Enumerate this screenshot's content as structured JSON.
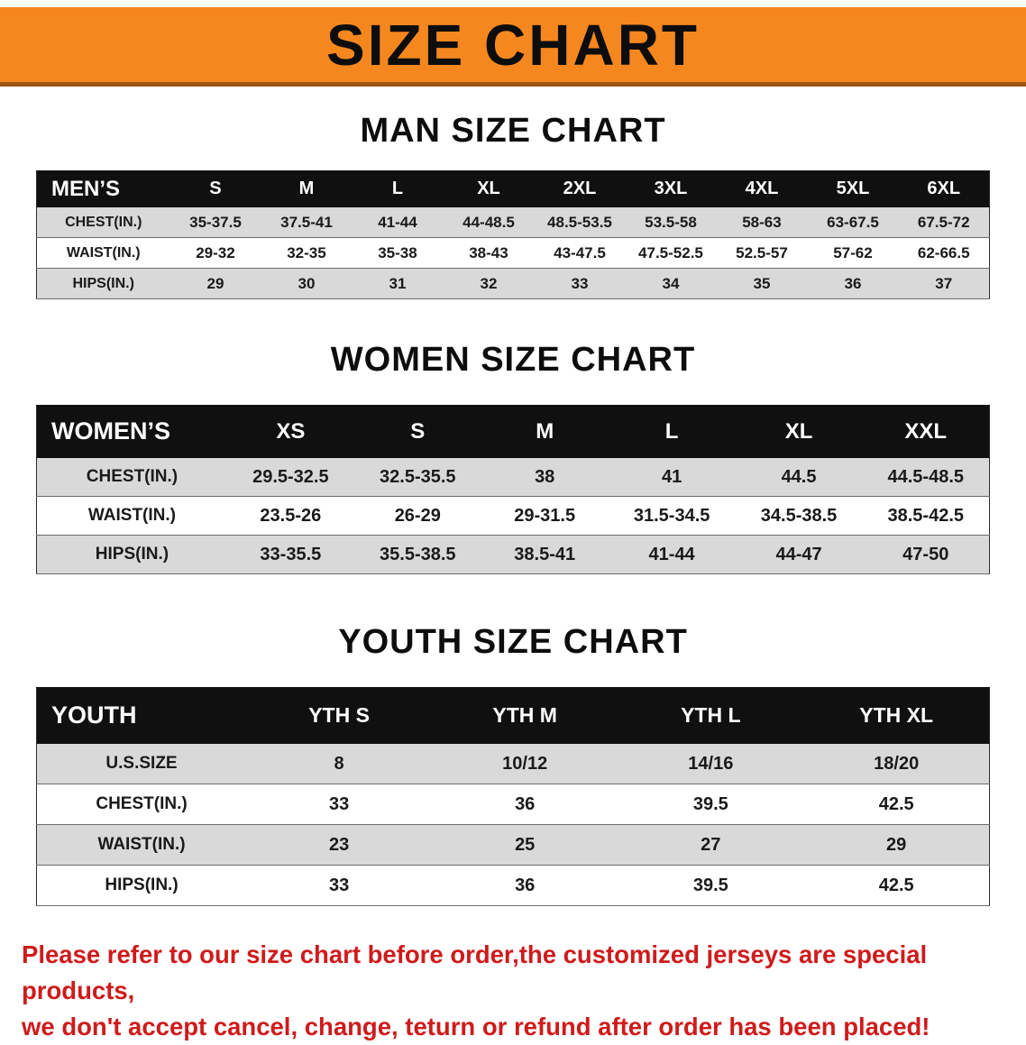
{
  "banner": {
    "title": "SIZE CHART"
  },
  "sections": [
    {
      "heading": "MAN SIZE CHART",
      "table": {
        "header": [
          "MEN’S",
          "S",
          "M",
          "L",
          "XL",
          "2XL",
          "3XL",
          "4XL",
          "5XL",
          "6XL"
        ],
        "rows": [
          {
            "label": "CHEST(IN.)",
            "values": [
              "35-37.5",
              "37.5-41",
              "41-44",
              "44-48.5",
              "48.5-53.5",
              "53.5-58",
              "58-63",
              "63-67.5",
              "67.5-72"
            ]
          },
          {
            "label": "WAIST(IN.)",
            "values": [
              "29-32",
              "32-35",
              "35-38",
              "38-43",
              "43-47.5",
              "47.5-52.5",
              "52.5-57",
              "57-62",
              "62-66.5"
            ]
          },
          {
            "label": "HIPS(IN.)",
            "values": [
              "29",
              "30",
              "31",
              "32",
              "33",
              "34",
              "35",
              "36",
              "37"
            ]
          }
        ]
      }
    },
    {
      "heading": "WOMEN SIZE CHART",
      "table": {
        "header": [
          "WOMEN’S",
          "XS",
          "S",
          "M",
          "L",
          "XL",
          "XXL"
        ],
        "rows": [
          {
            "label": "CHEST(IN.)",
            "values": [
              "29.5-32.5",
              "32.5-35.5",
              "38",
              "41",
              "44.5",
              "44.5-48.5"
            ]
          },
          {
            "label": "WAIST(IN.)",
            "values": [
              "23.5-26",
              "26-29",
              "29-31.5",
              "31.5-34.5",
              "34.5-38.5",
              "38.5-42.5"
            ]
          },
          {
            "label": "HIPS(IN.)",
            "values": [
              "33-35.5",
              "35.5-38.5",
              "38.5-41",
              "41-44",
              "44-47",
              "47-50"
            ]
          }
        ]
      }
    },
    {
      "heading": "YOUTH SIZE CHART",
      "table": {
        "header": [
          "YOUTH",
          "YTH S",
          "YTH M",
          "YTH L",
          "YTH XL"
        ],
        "rows": [
          {
            "label": "U.S.SIZE",
            "values": [
              "8",
              "10/12",
              "14/16",
              "18/20"
            ]
          },
          {
            "label": "CHEST(IN.)",
            "values": [
              "33",
              "36",
              "39.5",
              "42.5"
            ]
          },
          {
            "label": "WAIST(IN.)",
            "values": [
              "23",
              "25",
              "27",
              "29"
            ]
          },
          {
            "label": "HIPS(IN.)",
            "values": [
              "33",
              "36",
              "39.5",
              "42.5"
            ]
          }
        ]
      }
    }
  ],
  "disclaimer": {
    "line1": "Please refer to our size chart before order,the customized jerseys are special products,",
    "line2": "we don't accept cancel, change, teturn or refund after order has been placed!"
  },
  "colors": {
    "banner_orange": "#f6871f",
    "row_gray": "#d9d9d9",
    "header_black": "#101010",
    "disclaimer_red": "#cf1b1b"
  }
}
